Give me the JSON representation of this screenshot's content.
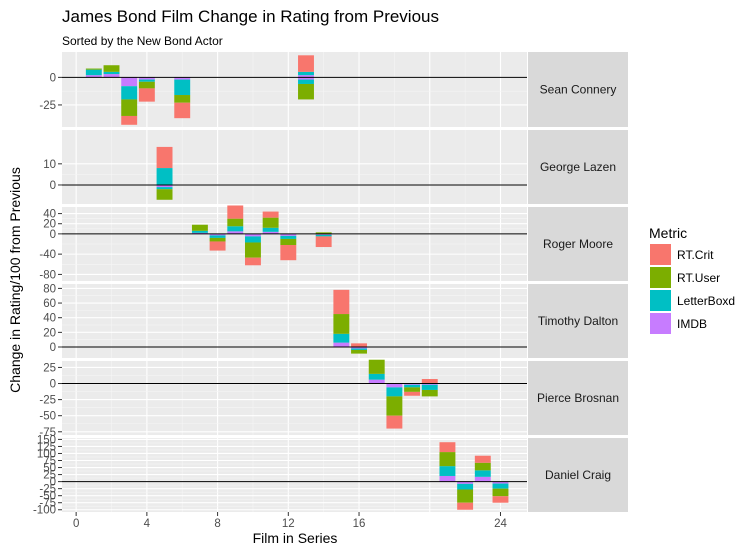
{
  "chart_data": {
    "type": "bar",
    "stacked": true,
    "faceted": true,
    "title": "James Bond Film Change in Rating from Previous",
    "subtitle": "Sorted by the New Bond Actor",
    "xlabel": "Film in Series",
    "ylabel": "Change in Rating/100 from Previous",
    "xlim": [
      -0.8,
      25.5
    ],
    "x_ticks": [
      0,
      4,
      8,
      12,
      16,
      24
    ],
    "grid": true,
    "legend": {
      "title": "Metric",
      "position": "right",
      "entries": [
        "RT.Crit",
        "RT.User",
        "LetterBoxd",
        "IMDB"
      ]
    },
    "series_colors": {
      "RT.Crit": "#F8766D",
      "RT.User": "#7CAE00",
      "LetterBoxd": "#00BFC4",
      "IMDB": "#C77CFF"
    },
    "stack_order": [
      "IMDB",
      "LetterBoxd",
      "RT.User",
      "RT.Crit"
    ],
    "facets": [
      {
        "label": "Sean Connery",
        "ylim": [
          -45,
          23
        ],
        "y_ticks": [
          0,
          -25
        ],
        "bars": [
          {
            "x": 1,
            "IMDB": 2,
            "LetterBoxd": 5,
            "RT.User": 1,
            "RT.Crit": 0
          },
          {
            "x": 2,
            "IMDB": 3,
            "LetterBoxd": 2,
            "RT.User": 6,
            "RT.Crit": 0
          },
          {
            "x": 3,
            "IMDB": -8,
            "LetterBoxd": -12,
            "RT.User": -15,
            "RT.Crit": -8
          },
          {
            "x": 4,
            "IMDB": -2,
            "LetterBoxd": -2,
            "RT.User": -6,
            "RT.Crit": -12
          },
          {
            "x": 6,
            "IMDB": -2,
            "LetterBoxd": -14,
            "RT.User": -7,
            "RT.Crit": -14
          },
          {
            "x": 13,
            "IMDB": 2,
            "LetterBoxd": 3,
            "RT.User": 0,
            "RT.Crit": 15,
            "IMDB_neg": -2,
            "LetterBoxd_neg": -4,
            "RT.User_neg": -14
          }
        ]
      },
      {
        "label": "George Lazen",
        "ylim": [
          -9,
          26
        ],
        "y_ticks": [
          10,
          0
        ],
        "bars": [
          {
            "x": 5,
            "IMDB": 0,
            "LetterBoxd": 8,
            "RT.User": 0,
            "RT.Crit": 10,
            "IMDB_neg": -1,
            "LetterBoxd_neg": -1,
            "RT.User_neg": -5
          }
        ]
      },
      {
        "label": "Roger Moore",
        "ylim": [
          -93,
          53
        ],
        "y_ticks": [
          40,
          20,
          0,
          -40,
          -80
        ],
        "bars": [
          {
            "x": 7,
            "IMDB": 2,
            "LetterBoxd": 4,
            "RT.User": 12,
            "RT.Crit": 0
          },
          {
            "x": 8,
            "IMDB": -3,
            "LetterBoxd": -5,
            "RT.User": -7,
            "RT.Crit": -18
          },
          {
            "x": 9,
            "IMDB": 5,
            "LetterBoxd": 10,
            "RT.User": 15,
            "RT.Crit": 26
          },
          {
            "x": 10,
            "IMDB": -5,
            "LetterBoxd": -12,
            "RT.User": -30,
            "RT.Crit": -15
          },
          {
            "x": 11,
            "IMDB": 4,
            "LetterBoxd": 8,
            "RT.User": 20,
            "RT.Crit": 12
          },
          {
            "x": 12,
            "IMDB": -4,
            "LetterBoxd": -6,
            "RT.User": -12,
            "RT.Crit": -30
          },
          {
            "x": 14,
            "IMDB": 0,
            "LetterBoxd": 0,
            "RT.User": 3,
            "RT.Crit": 0,
            "IMDB_neg": -2,
            "LetterBoxd_neg": -3,
            "RT.Crit_neg": -21
          }
        ]
      },
      {
        "label": "Timothy Dalton",
        "ylim": [
          -15,
          86
        ],
        "y_ticks": [
          80,
          60,
          40,
          20,
          0
        ],
        "bars": [
          {
            "x": 15,
            "IMDB": 6,
            "LetterBoxd": 12,
            "RT.User": 27,
            "RT.Crit": 33
          },
          {
            "x": 16,
            "IMDB": 0,
            "LetterBoxd": 0,
            "RT.User": 0,
            "RT.Crit": 5,
            "IMDB_neg": -2,
            "LetterBoxd_neg": -2,
            "RT.User_neg": -5
          }
        ]
      },
      {
        "label": "Pierce Brosnan",
        "ylim": [
          -80,
          35
        ],
        "y_ticks": [
          25,
          0,
          -25,
          -50,
          -75
        ],
        "bars": [
          {
            "x": 17,
            "IMDB": 6,
            "LetterBoxd": 9,
            "RT.User": 22,
            "RT.Crit": 0
          },
          {
            "x": 18,
            "IMDB": -6,
            "LetterBoxd": -14,
            "RT.User": -30,
            "RT.Crit": -20
          },
          {
            "x": 19,
            "IMDB": -2,
            "LetterBoxd": -4,
            "RT.User": -7,
            "RT.Crit": -6
          },
          {
            "x": 20,
            "IMDB": 0,
            "LetterBoxd": 0,
            "RT.User": 0,
            "RT.Crit": 7,
            "IMDB_neg": -2,
            "LetterBoxd_neg": -8,
            "RT.User_neg": -10
          }
        ]
      },
      {
        "label": "Daniel Craig",
        "ylim": [
          -108,
          155
        ],
        "y_ticks": [
          150,
          125,
          100,
          75,
          50,
          25,
          0,
          -25,
          -50,
          -75,
          -100
        ],
        "bars": [
          {
            "x": 21,
            "IMDB": 20,
            "LetterBoxd": 35,
            "RT.User": 50,
            "RT.Crit": 35
          },
          {
            "x": 22,
            "IMDB": -8,
            "LetterBoxd": -20,
            "RT.User": -47,
            "RT.Crit": -25
          },
          {
            "x": 23,
            "IMDB": 17,
            "LetterBoxd": 23,
            "RT.User": 27,
            "RT.Crit": 25
          },
          {
            "x": 24,
            "IMDB": -7,
            "LetterBoxd": -18,
            "RT.User": -27,
            "RT.Crit": -23
          }
        ]
      }
    ]
  }
}
